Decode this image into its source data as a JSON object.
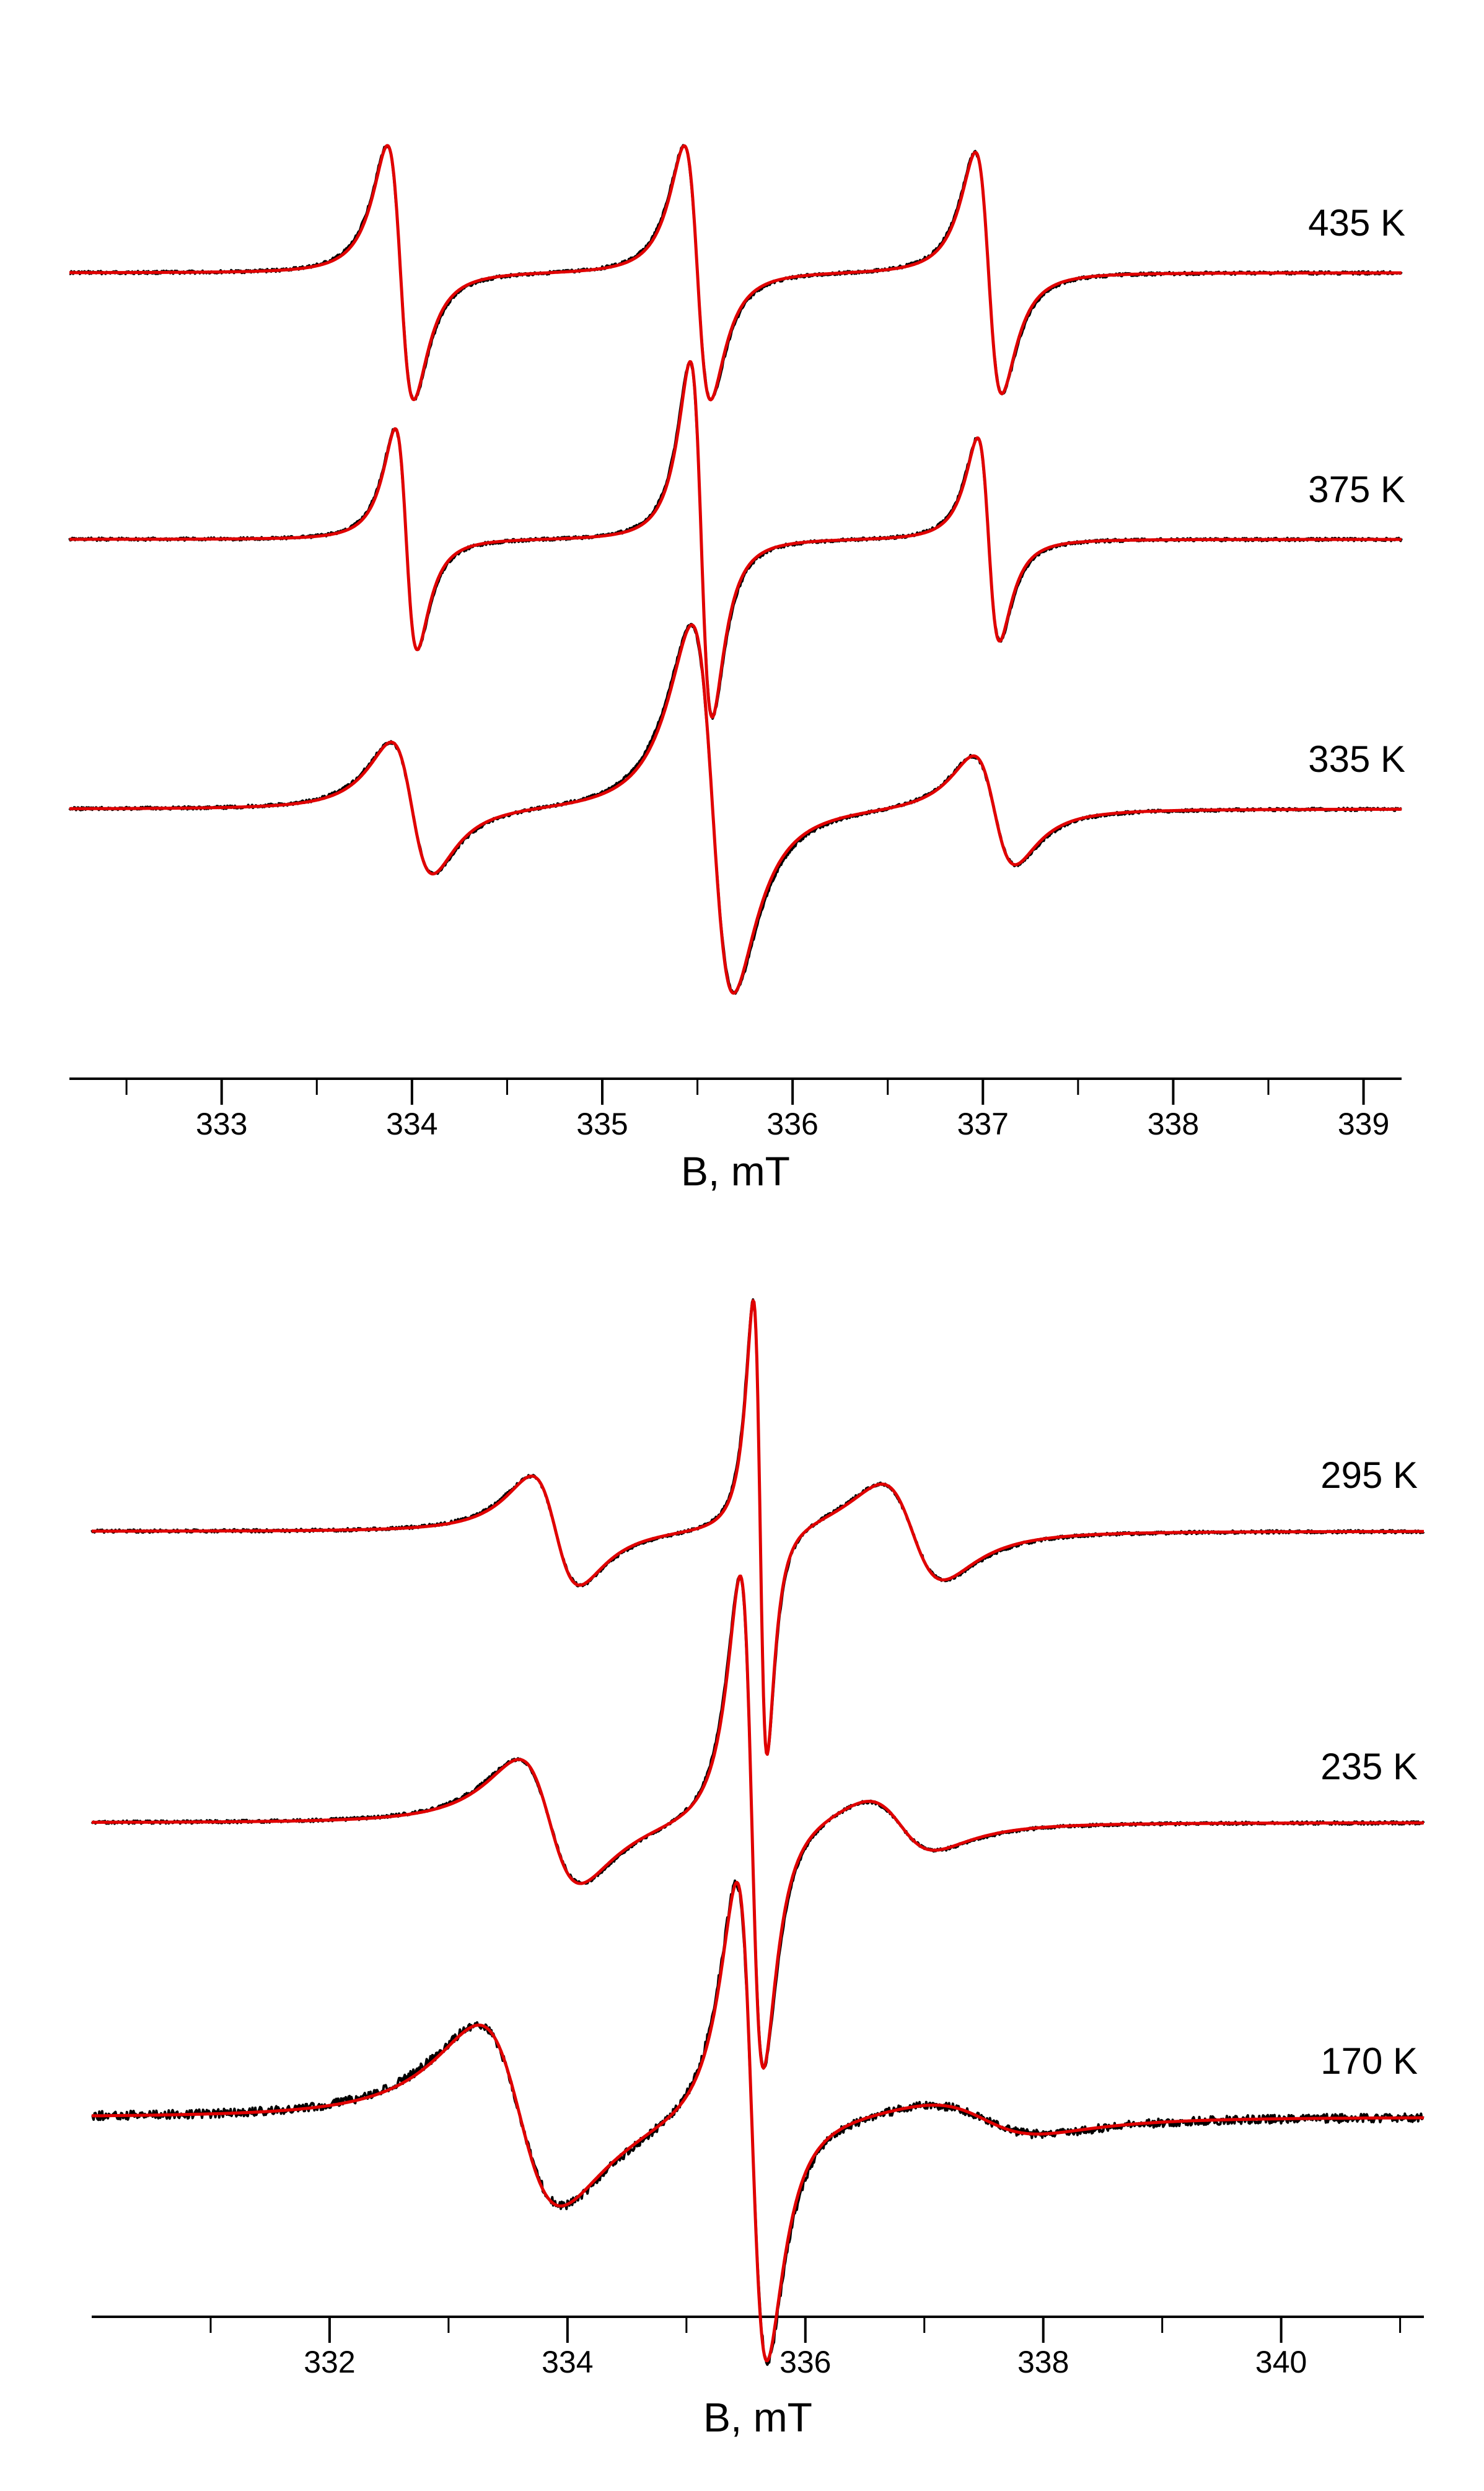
{
  "chart_data": [
    {
      "type": "line",
      "xlabel": "B, mT",
      "ylabel": "",
      "xlim": [
        332.2,
        339.2
      ],
      "x_ticks": [
        333,
        334,
        335,
        336,
        337,
        338,
        339
      ],
      "x_tick_labels": [
        "333",
        "334",
        "335",
        "336",
        "337",
        "338",
        "339"
      ],
      "x_minor_ticks": [
        332.5,
        333.5,
        334.5,
        335.5,
        336.5,
        337.5,
        338.5
      ],
      "legend": "none",
      "grid": false,
      "line_colors": {
        "experiment": "#000000",
        "simulation": "#e00000"
      },
      "series": [
        {
          "label": "435 K",
          "lw": 0.12,
          "lines": [
            {
              "center": 333.94,
              "amp": 1.0
            },
            {
              "center": 335.5,
              "amp": 1.0
            },
            {
              "center": 337.03,
              "amp": 0.95
            }
          ]
        },
        {
          "label": "375 K",
          "lw": 0.1,
          "lines": [
            {
              "center": 333.97,
              "amp": 0.87
            },
            {
              "center": 335.52,
              "amp": 1.4
            },
            {
              "center": 337.03,
              "amp": 0.8
            }
          ]
        },
        {
          "label": "335 K",
          "lw": 0.19,
          "lines": [
            {
              "center": 334.0,
              "amp": 0.52
            },
            {
              "center": 335.58,
              "amp": 1.45
            },
            {
              "center": 337.06,
              "amp": 0.43
            }
          ]
        }
      ]
    },
    {
      "type": "line",
      "xlabel": "B, mT",
      "ylabel": "",
      "xlim": [
        330.0,
        341.2
      ],
      "x_ticks": [
        332,
        334,
        336,
        338,
        340
      ],
      "x_tick_labels": [
        "332",
        "334",
        "336",
        "338",
        "340"
      ],
      "x_minor_ticks": [
        331,
        333,
        335,
        337,
        339,
        341
      ],
      "legend": "none",
      "grid": false,
      "line_colors": {
        "experiment": "#000000",
        "simulation": "#e00000"
      },
      "series": [
        {
          "label": "295 K",
          "lines": [
            {
              "center": 333.9,
              "amp": 0.42,
              "lw": 0.35
            },
            {
              "center": 335.62,
              "amp": 1.75,
              "lw": 0.1
            },
            {
              "center": 336.9,
              "amp": 0.37,
              "lw": 0.45
            }
          ]
        },
        {
          "label": "235 K",
          "lines": [
            {
              "center": 333.85,
              "amp": 0.48,
              "lw": 0.45
            },
            {
              "center": 335.55,
              "amp": 1.9,
              "lw": 0.17
            },
            {
              "center": 336.8,
              "amp": 0.2,
              "lw": 0.5
            }
          ]
        },
        {
          "label": "170 K",
          "lines": [
            {
              "center": 333.6,
              "amp": 0.7,
              "lw": 0.6
            },
            {
              "center": 335.55,
              "amp": 1.85,
              "lw": 0.22
            },
            {
              "center": 337.5,
              "amp": 0.12,
              "lw": 0.8
            }
          ]
        }
      ]
    }
  ]
}
